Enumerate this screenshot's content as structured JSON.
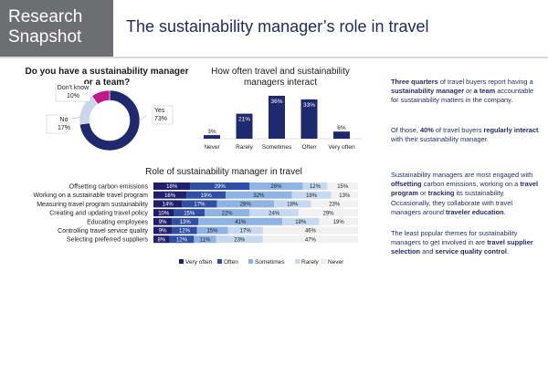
{
  "header": {
    "badge_line1": "Research",
    "badge_line2": "Snapshot",
    "title": "The sustainability manager’s role in travel"
  },
  "colors": {
    "navy": "#1f1f6e",
    "blue_mid": "#2e4fa3",
    "blue_light": "#8fb4e3",
    "blue_pale": "#c6d9f0",
    "never_gray": "#f2f2f2",
    "magenta": "#c0178a",
    "donut_light": "#c9d6ec",
    "bar_navy": "#1f2a6e"
  },
  "chart_data": [
    {
      "type": "pie",
      "title": "Do you have a sustainability manager or a team?",
      "slices": [
        {
          "label": "Yes",
          "value": 73,
          "value_label": "73%",
          "color": "#1f2a6e"
        },
        {
          "label": "No",
          "value": 17,
          "value_label": "17%",
          "color": "#c9d6ec"
        },
        {
          "label": "Don't know",
          "value": 10,
          "value_label": "10%",
          "color": "#c0178a"
        }
      ]
    },
    {
      "type": "bar",
      "title": "How often travel and sustainability managers interact",
      "categories": [
        "Never",
        "Rarely",
        "Sometimes",
        "Often",
        "Very often"
      ],
      "values": [
        3,
        21,
        36,
        33,
        6
      ],
      "value_labels": [
        "3%",
        "21%",
        "36%",
        "33%",
        "6%"
      ],
      "ylim": [
        0,
        36
      ]
    },
    {
      "type": "bar",
      "stacked": true,
      "orientation": "horizontal",
      "title": "Role of sustainability manager in travel",
      "categories": [
        "Offsetting carbon emissions",
        "Working on a sustainable travel program",
        "Measuring travel program sustainability",
        "Creating and updating travel policy",
        "Educating employees",
        "Controlling travel service quality",
        "Selecting preferred suppliers"
      ],
      "series": [
        {
          "name": "Very often",
          "color": "#1f1f6e",
          "values": [
            18,
            16,
            14,
            10,
            9,
            9,
            8
          ]
        },
        {
          "name": "Often",
          "color": "#2e4fa3",
          "values": [
            29,
            19,
            17,
            15,
            13,
            12,
            12
          ]
        },
        {
          "name": "Sometimes",
          "color": "#8fb4e3",
          "values": [
            26,
            32,
            28,
            22,
            41,
            15,
            11
          ]
        },
        {
          "name": "Rarely",
          "color": "#c6d9f0",
          "values": [
            12,
            19,
            18,
            24,
            18,
            17,
            23
          ]
        },
        {
          "name": "Never",
          "color": "#f2f2f2",
          "values": [
            15,
            13,
            23,
            29,
            19,
            46,
            47
          ]
        }
      ],
      "legend": "bottom"
    }
  ],
  "sidebar": {
    "p1": [
      {
        "t": "Three quarters",
        "b": true
      },
      {
        "t": " of travel buyers report having a ",
        "b": false
      },
      {
        "t": "sustainability manager",
        "b": true
      },
      {
        "t": " or ",
        "b": false
      },
      {
        "t": "a team",
        "b": true
      },
      {
        "t": " accountable for sustainability matters in the company.",
        "b": false
      }
    ],
    "p2": [
      {
        "t": "Of those, ",
        "b": false
      },
      {
        "t": "40%",
        "b": true
      },
      {
        "t": " of travel buyers ",
        "b": false
      },
      {
        "t": "regularly interact",
        "b": true
      },
      {
        "t": " with their sustainability manager.",
        "b": false
      }
    ],
    "p3": [
      {
        "t": "Sustainability managers are most engaged with ",
        "b": false
      },
      {
        "t": "offsetting",
        "b": true
      },
      {
        "t": " carbon emissions, working on a ",
        "b": false
      },
      {
        "t": "travel program",
        "b": true
      },
      {
        "t": " or ",
        "b": false
      },
      {
        "t": "tracking",
        "b": true
      },
      {
        "t": " its sustainability. Occasionally, they collaborate with travel managers around ",
        "b": false
      },
      {
        "t": "traveler education",
        "b": true
      },
      {
        "t": ".",
        "b": false
      }
    ],
    "p4": [
      {
        "t": "The least popular themes for  sustainability managers to get involved in are ",
        "b": false
      },
      {
        "t": "travel supplier selection",
        "b": true
      },
      {
        "t": " and ",
        "b": false
      },
      {
        "t": "service quality control",
        "b": true
      },
      {
        "t": ".",
        "b": false
      }
    ]
  }
}
